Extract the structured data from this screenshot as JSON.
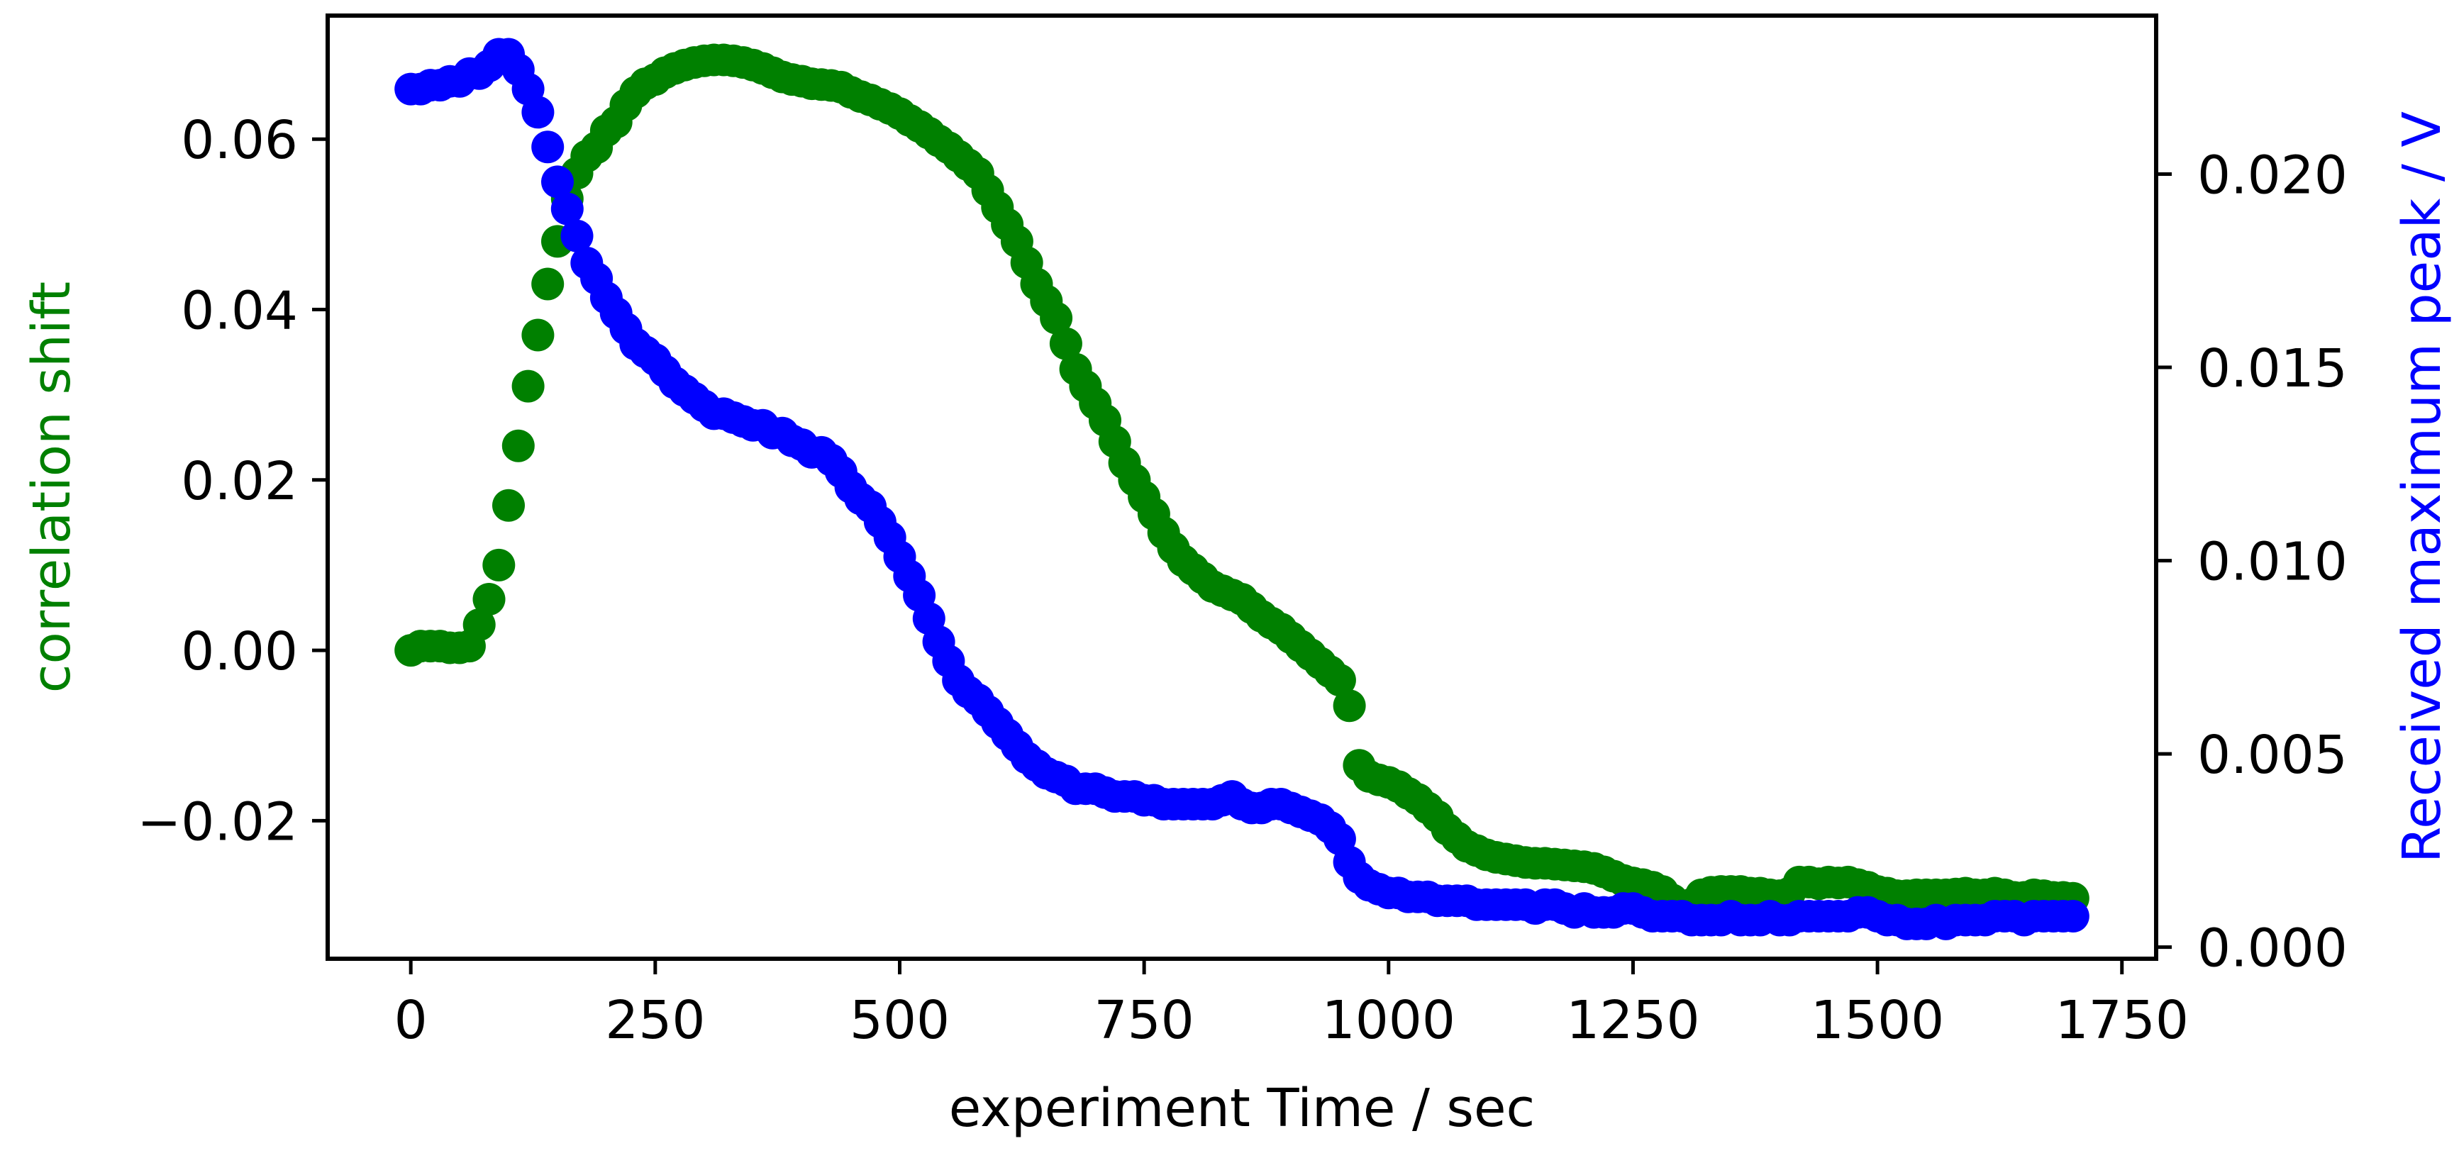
{
  "chart_data": {
    "type": "scatter",
    "title": "",
    "xlabel": "experiment Time / sec",
    "ylabel_left": "correlation shift",
    "ylabel_right": "Received maximum peak / V",
    "xlim": [
      -85,
      1785
    ],
    "ylim_left": [
      -0.0362,
      0.0745
    ],
    "ylim_right": [
      -0.0003,
      0.0241
    ],
    "grid": false,
    "x_ticks": [
      0,
      250,
      500,
      750,
      1000,
      1250,
      1500,
      1750
    ],
    "x_tick_labels": [
      "0",
      "250",
      "500",
      "750",
      "1000",
      "1250",
      "1500",
      "1750"
    ],
    "y_left_ticks": [
      -0.02,
      0.0,
      0.02,
      0.04,
      0.06
    ],
    "y_left_tick_labels": [
      "−0.02",
      "0.00",
      "0.02",
      "0.04",
      "0.06"
    ],
    "y_right_ticks": [
      0.0,
      0.005,
      0.01,
      0.015,
      0.02
    ],
    "y_right_tick_labels": [
      "0.000",
      "0.005",
      "0.010",
      "0.015",
      "0.020"
    ],
    "series": [
      {
        "name": "correlation shift",
        "axis": "left",
        "color": "#008000",
        "x": [
          0,
          10,
          20,
          30,
          40,
          50,
          60,
          70,
          80,
          90,
          100,
          110,
          120,
          130,
          140,
          150,
          160,
          170,
          180,
          190,
          200,
          210,
          220,
          230,
          240,
          250,
          260,
          270,
          280,
          290,
          300,
          310,
          320,
          330,
          340,
          350,
          360,
          370,
          380,
          390,
          400,
          410,
          420,
          430,
          440,
          450,
          460,
          470,
          480,
          490,
          500,
          510,
          520,
          530,
          540,
          550,
          560,
          570,
          580,
          590,
          600,
          610,
          620,
          630,
          640,
          650,
          660,
          670,
          680,
          690,
          700,
          710,
          720,
          730,
          740,
          750,
          760,
          770,
          780,
          790,
          800,
          810,
          820,
          830,
          840,
          850,
          860,
          870,
          880,
          890,
          900,
          910,
          920,
          930,
          940,
          950,
          960,
          970,
          980,
          990,
          1000,
          1010,
          1020,
          1030,
          1040,
          1050,
          1060,
          1070,
          1080,
          1090,
          1100,
          1110,
          1120,
          1130,
          1140,
          1150,
          1160,
          1170,
          1180,
          1190,
          1200,
          1210,
          1220,
          1230,
          1240,
          1250,
          1260,
          1270,
          1280,
          1290,
          1300,
          1310,
          1320,
          1330,
          1340,
          1350,
          1360,
          1370,
          1380,
          1390,
          1400,
          1410,
          1420,
          1430,
          1440,
          1450,
          1460,
          1470,
          1480,
          1490,
          1500,
          1510,
          1520,
          1530,
          1540,
          1550,
          1560,
          1570,
          1580,
          1590,
          1600,
          1610,
          1620,
          1630,
          1640,
          1650,
          1660,
          1670,
          1680,
          1690,
          1700
        ],
        "y": [
          0.0,
          0.0005,
          0.0005,
          0.0005,
          0.0003,
          0.0003,
          0.0005,
          0.003,
          0.006,
          0.01,
          0.017,
          0.024,
          0.031,
          0.037,
          0.043,
          0.048,
          0.053,
          0.056,
          0.058,
          0.059,
          0.061,
          0.062,
          0.064,
          0.0655,
          0.0665,
          0.067,
          0.0678,
          0.0683,
          0.0687,
          0.069,
          0.0692,
          0.0693,
          0.0693,
          0.0692,
          0.069,
          0.0687,
          0.0683,
          0.0678,
          0.0673,
          0.067,
          0.0668,
          0.0665,
          0.0664,
          0.0663,
          0.0661,
          0.0655,
          0.065,
          0.0646,
          0.0641,
          0.0636,
          0.063,
          0.0622,
          0.0615,
          0.0607,
          0.0598,
          0.059,
          0.058,
          0.057,
          0.056,
          0.054,
          0.052,
          0.05,
          0.048,
          0.0455,
          0.043,
          0.041,
          0.039,
          0.036,
          0.033,
          0.031,
          0.029,
          0.027,
          0.0245,
          0.022,
          0.02,
          0.018,
          0.016,
          0.0138,
          0.012,
          0.0105,
          0.0095,
          0.0085,
          0.0075,
          0.007,
          0.0065,
          0.006,
          0.005,
          0.004,
          0.0032,
          0.0025,
          0.0015,
          0.0005,
          -0.0005,
          -0.0015,
          -0.0025,
          -0.0035,
          -0.0065,
          -0.0135,
          -0.0148,
          -0.0152,
          -0.0155,
          -0.016,
          -0.0168,
          -0.0175,
          -0.0185,
          -0.0195,
          -0.021,
          -0.022,
          -0.023,
          -0.0235,
          -0.024,
          -0.0243,
          -0.0245,
          -0.0247,
          -0.0249,
          -0.025,
          -0.025,
          -0.0251,
          -0.0252,
          -0.0253,
          -0.0254,
          -0.0256,
          -0.026,
          -0.0265,
          -0.027,
          -0.0273,
          -0.0275,
          -0.0278,
          -0.0283,
          -0.0293,
          -0.031,
          -0.0298,
          -0.0287,
          -0.0284,
          -0.0283,
          -0.0283,
          -0.0283,
          -0.0285,
          -0.0285,
          -0.0287,
          -0.0288,
          -0.0285,
          -0.0272,
          -0.0272,
          -0.0274,
          -0.0272,
          -0.0273,
          -0.0272,
          -0.0275,
          -0.0278,
          -0.0283,
          -0.0285,
          -0.0288,
          -0.0288,
          -0.0287,
          -0.0287,
          -0.0287,
          -0.0287,
          -0.0286,
          -0.0285,
          -0.0287,
          -0.0287,
          -0.0285,
          -0.0287,
          -0.029,
          -0.029,
          -0.0287,
          -0.0288,
          -0.029,
          -0.029,
          -0.0291
        ]
      },
      {
        "name": "Received maximum peak",
        "axis": "right",
        "color": "#0000ff",
        "x": [
          0,
          10,
          20,
          30,
          40,
          50,
          60,
          70,
          80,
          90,
          100,
          110,
          120,
          130,
          140,
          150,
          160,
          170,
          180,
          190,
          200,
          210,
          220,
          230,
          240,
          250,
          260,
          270,
          280,
          290,
          300,
          310,
          320,
          330,
          340,
          350,
          360,
          370,
          380,
          390,
          400,
          410,
          420,
          430,
          440,
          450,
          460,
          470,
          480,
          490,
          500,
          510,
          520,
          530,
          540,
          550,
          560,
          570,
          580,
          590,
          600,
          610,
          620,
          630,
          640,
          650,
          660,
          670,
          680,
          690,
          700,
          710,
          720,
          730,
          740,
          750,
          760,
          770,
          780,
          790,
          800,
          810,
          820,
          830,
          840,
          850,
          860,
          870,
          880,
          890,
          900,
          910,
          920,
          930,
          940,
          950,
          960,
          970,
          980,
          990,
          1000,
          1010,
          1020,
          1030,
          1040,
          1050,
          1060,
          1070,
          1080,
          1090,
          1100,
          1110,
          1120,
          1130,
          1140,
          1150,
          1160,
          1170,
          1180,
          1190,
          1200,
          1210,
          1220,
          1230,
          1240,
          1250,
          1260,
          1270,
          1280,
          1290,
          1300,
          1310,
          1320,
          1330,
          1340,
          1350,
          1360,
          1370,
          1380,
          1390,
          1400,
          1410,
          1420,
          1430,
          1440,
          1450,
          1460,
          1470,
          1480,
          1490,
          1500,
          1510,
          1520,
          1530,
          1540,
          1550,
          1560,
          1570,
          1580,
          1590,
          1600,
          1610,
          1620,
          1630,
          1640,
          1650,
          1660,
          1670,
          1680,
          1690,
          1700
        ],
        "y": [
          0.0222,
          0.0222,
          0.0223,
          0.0223,
          0.0224,
          0.0224,
          0.0226,
          0.0226,
          0.0228,
          0.0231,
          0.0231,
          0.0227,
          0.0222,
          0.0216,
          0.0207,
          0.0198,
          0.0191,
          0.0184,
          0.0177,
          0.0173,
          0.0168,
          0.0164,
          0.016,
          0.0156,
          0.0154,
          0.0152,
          0.0149,
          0.0146,
          0.0144,
          0.0142,
          0.014,
          0.0138,
          0.0138,
          0.0137,
          0.0136,
          0.0135,
          0.0135,
          0.0133,
          0.0133,
          0.0131,
          0.013,
          0.0128,
          0.0128,
          0.0126,
          0.0123,
          0.0119,
          0.0116,
          0.0114,
          0.011,
          0.0106,
          0.0101,
          0.0096,
          0.0091,
          0.0085,
          0.0079,
          0.0074,
          0.0069,
          0.0066,
          0.0064,
          0.0061,
          0.0058,
          0.0055,
          0.0052,
          0.0049,
          0.0047,
          0.0045,
          0.0044,
          0.0043,
          0.0041,
          0.0041,
          0.0041,
          0.004,
          0.0039,
          0.0039,
          0.0039,
          0.0038,
          0.0038,
          0.0037,
          0.0037,
          0.0037,
          0.0037,
          0.0037,
          0.0037,
          0.0038,
          0.0039,
          0.0037,
          0.0036,
          0.0036,
          0.0037,
          0.0037,
          0.0036,
          0.0035,
          0.0034,
          0.0033,
          0.0031,
          0.0028,
          0.0022,
          0.0018,
          0.0016,
          0.0015,
          0.0014,
          0.0014,
          0.0013,
          0.0013,
          0.0013,
          0.0012,
          0.0012,
          0.0012,
          0.0012,
          0.0011,
          0.0011,
          0.0011,
          0.0011,
          0.0011,
          0.0011,
          0.001,
          0.0011,
          0.0011,
          0.001,
          0.0009,
          0.001,
          0.0009,
          0.0009,
          0.0009,
          0.001,
          0.001,
          0.0009,
          0.0008,
          0.0008,
          0.0008,
          0.0008,
          0.0007,
          0.0007,
          0.0007,
          0.0007,
          0.0008,
          0.0007,
          0.0007,
          0.0007,
          0.0008,
          0.0007,
          0.0007,
          0.0008,
          0.0008,
          0.0008,
          0.0008,
          0.0008,
          0.0008,
          0.0009,
          0.0009,
          0.0008,
          0.0007,
          0.0007,
          0.0006,
          0.0006,
          0.0006,
          0.0007,
          0.0006,
          0.0007,
          0.0007,
          0.0007,
          0.0007,
          0.0008,
          0.0008,
          0.0008,
          0.0007,
          0.0008,
          0.0008,
          0.0008,
          0.0008,
          0.0008
        ]
      }
    ]
  }
}
